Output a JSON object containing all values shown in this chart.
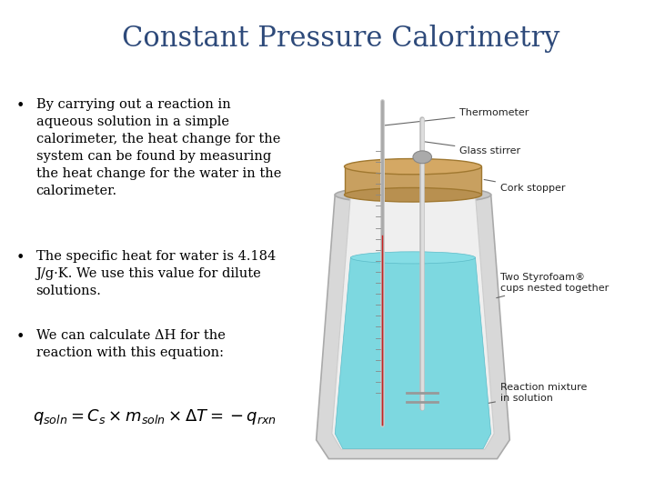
{
  "title": "Constant Pressure Calorimetry",
  "title_color": "#2E4A7A",
  "title_fontsize": 22,
  "title_fontstyle": "normal",
  "bg_color": "#FFFFFF",
  "bullet_color": "#000000",
  "bullet_fontsize": 10.5,
  "bullets": [
    "By carrying out a reaction in\naqueous solution in a simple\ncalorimeter, the heat change for the\nsystem can be found by measuring\nthe heat change for the water in the\ncalorimeter.",
    "The specific heat for water is 4.184\nJ/g·K. We use this value for dilute\nsolutions.",
    "We can calculate ΔH for the\nreaction with this equation:"
  ],
  "equation": "$q_{soln} = C_s \\times m_{soln} \\times \\Delta T = -q_{rxn}$",
  "equation_fontsize": 13,
  "label_fontsize": 8,
  "label_color": "#222222",
  "cup_outer_color": "#DCDCDC",
  "cup_inner_color": "#F0F0F0",
  "water_color": "#7DD8E0",
  "cork_color": "#C8A060",
  "cork_dark": "#A07830"
}
